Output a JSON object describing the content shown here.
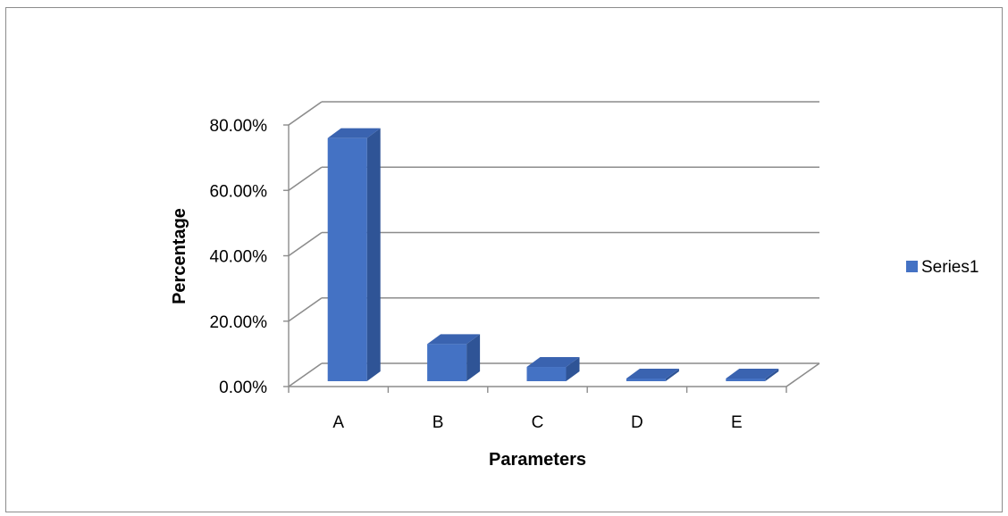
{
  "chart_data": {
    "type": "bar",
    "style": "3d-column",
    "categories": [
      "A",
      "B",
      "C",
      "D",
      "E"
    ],
    "series": [
      {
        "name": "Series1",
        "values": [
          76.0,
          13.0,
          6.0,
          1.2,
          0.5
        ]
      }
    ],
    "y_unit": "percent",
    "ylim": [
      0,
      80
    ],
    "yticks": [
      0,
      20,
      40,
      60,
      80
    ],
    "ytick_labels": [
      "0.00%",
      "20.00%",
      "40.00%",
      "60.00%",
      "80.00%"
    ],
    "xlabel": "Parameters",
    "ylabel": "Percentage",
    "grid": true,
    "legend_position": "right",
    "colors": {
      "bar_front": "#4472c4",
      "bar_side": "#2f5496",
      "bar_top": "#3a63b0",
      "gridline": "#8c8c8c",
      "frame": "#8c8c8c"
    }
  }
}
